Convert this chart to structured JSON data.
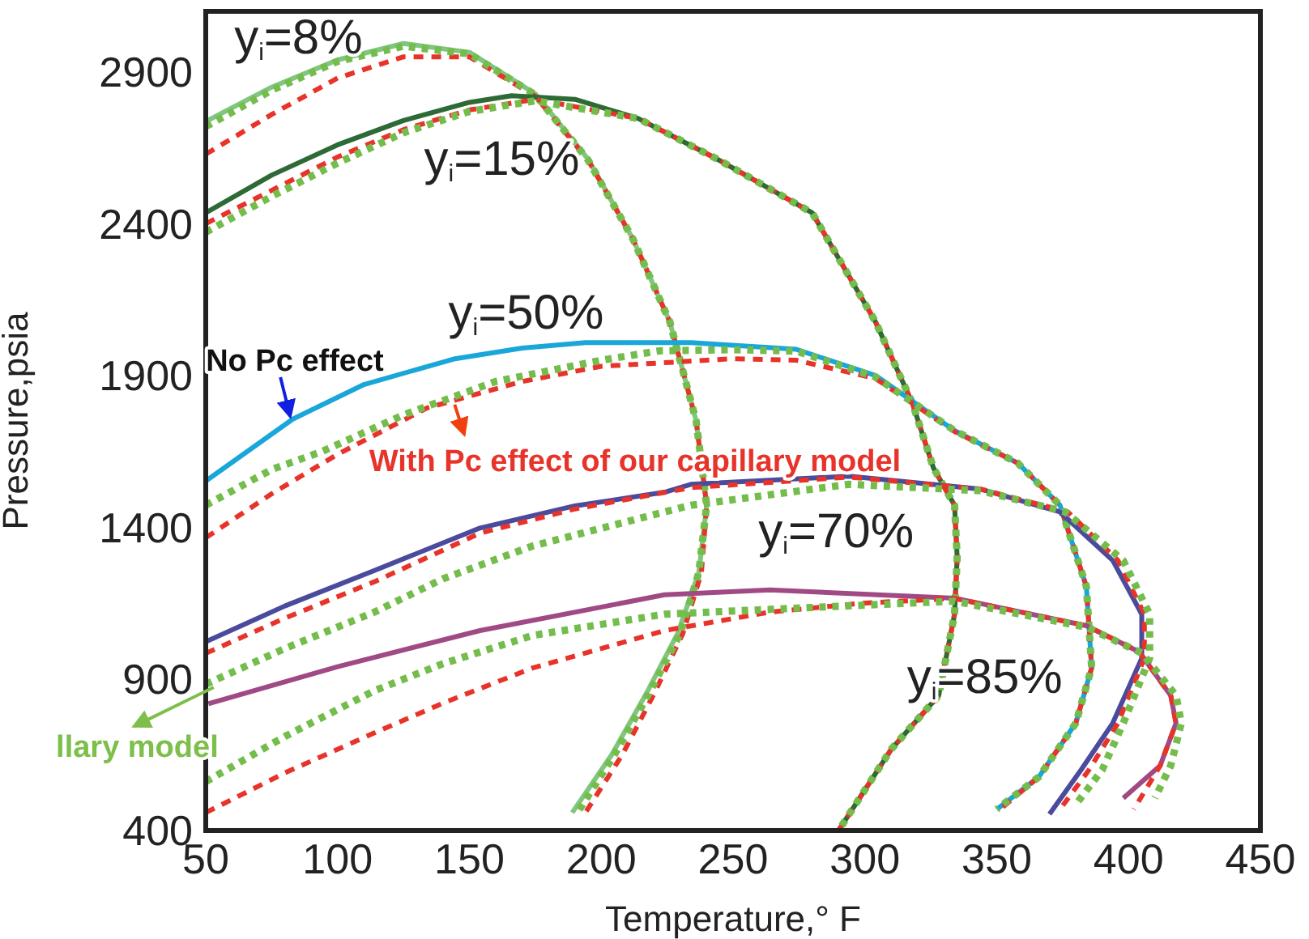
{
  "chart_data": {
    "type": "line",
    "xlabel": "Temperature,° F",
    "ylabel": "Pressure,psia",
    "xlim": [
      50,
      450
    ],
    "xticks": [
      50,
      100,
      150,
      200,
      250,
      300,
      350,
      400,
      450
    ],
    "ylim": [
      400,
      3100
    ],
    "yticks": [
      400,
      900,
      1400,
      1900,
      2400,
      2900
    ],
    "marker": "none",
    "series": [
      {
        "color": "#80c67f",
        "line_style": "solid",
        "x": [
          50,
          75,
          100,
          125,
          150,
          175,
          195,
          212,
          226,
          236,
          240,
          237,
          229,
          217,
          204,
          189
        ],
        "values": [
          2737,
          2850,
          2940,
          2994,
          2965,
          2828,
          2613,
          2350,
          2077,
          1750,
          1472,
          1250,
          1050,
          850,
          650,
          459
        ]
      },
      {
        "color": "#e8332a",
        "line_style": "dashed",
        "x": [
          50,
          75,
          100,
          125,
          150,
          175,
          195,
          212,
          226,
          236,
          240,
          238,
          231,
          220,
          208,
          194
        ],
        "values": [
          2629,
          2760,
          2880,
          2950,
          2950,
          2820,
          2610,
          2350,
          2077,
          1750,
          1472,
          1250,
          1050,
          850,
          650,
          459
        ]
      },
      {
        "color": "#74bd4c",
        "line_style": "dotted",
        "x": [
          50,
          75,
          100,
          125,
          150,
          175,
          195,
          212,
          226,
          236,
          240,
          237,
          230,
          218,
          205,
          191
        ],
        "values": [
          2720,
          2840,
          2935,
          2985,
          2960,
          2825,
          2610,
          2350,
          2077,
          1750,
          1472,
          1250,
          1050,
          850,
          650,
          459
        ]
      },
      {
        "color": "#2d6a36",
        "line_style": "solid",
        "x": [
          50,
          75,
          100,
          125,
          150,
          166,
          190,
          214,
          244,
          280,
          304,
          318,
          326,
          334,
          335,
          334,
          328,
          310,
          290
        ],
        "values": [
          2436,
          2560,
          2660,
          2740,
          2800,
          2822,
          2810,
          2747,
          2613,
          2436,
          2077,
          1809,
          1595,
          1472,
          1300,
          1113,
          845,
          668,
          400
        ]
      },
      {
        "color": "#e8332a",
        "line_style": "dashed",
        "x": [
          50,
          75,
          100,
          125,
          150,
          175,
          214,
          244,
          280,
          304,
          318,
          326,
          334,
          335,
          334,
          328,
          310,
          290
        ],
        "values": [
          2400,
          2510,
          2620,
          2710,
          2775,
          2810,
          2747,
          2613,
          2436,
          2077,
          1809,
          1595,
          1472,
          1300,
          1113,
          845,
          668,
          400
        ]
      },
      {
        "color": "#74bd4c",
        "line_style": "dotted",
        "x": [
          50,
          75,
          100,
          125,
          150,
          175,
          214,
          244,
          280,
          304,
          318,
          326,
          334,
          335,
          334,
          328,
          310,
          290
        ],
        "values": [
          2372,
          2490,
          2600,
          2700,
          2770,
          2805,
          2747,
          2613,
          2436,
          2077,
          1809,
          1595,
          1472,
          1300,
          1113,
          845,
          668,
          400
        ]
      },
      {
        "color": "#19a6d8",
        "line_style": "solid",
        "x": [
          50,
          83,
          110,
          144,
          170,
          194,
          234,
          274,
          304,
          334,
          358,
          374,
          384,
          386,
          380,
          366,
          350
        ],
        "values": [
          1552,
          1756,
          1870,
          1954,
          1990,
          2008,
          2008,
          1986,
          1900,
          1718,
          1611,
          1472,
          1204,
          936,
          754,
          577,
          470
        ]
      },
      {
        "color": "#e8332a",
        "line_style": "dashed",
        "x": [
          50,
          75,
          100,
          134,
          170,
          200,
          250,
          274,
          304,
          334,
          358,
          374,
          384,
          386,
          380,
          366,
          352
        ],
        "values": [
          1365,
          1510,
          1640,
          1793,
          1880,
          1930,
          1955,
          1950,
          1890,
          1715,
          1611,
          1472,
          1204,
          936,
          754,
          577,
          475
        ]
      },
      {
        "color": "#74bd4c",
        "line_style": "dotted",
        "x": [
          50,
          75,
          94,
          125,
          160,
          200,
          222,
          250,
          274,
          304,
          334,
          358,
          374,
          384,
          386,
          380,
          366,
          350
        ],
        "values": [
          1472,
          1590,
          1649,
          1770,
          1880,
          1950,
          1981,
          1985,
          1980,
          1895,
          1718,
          1611,
          1472,
          1204,
          936,
          754,
          577,
          470
        ]
      },
      {
        "color": "#4a4b9d",
        "line_style": "solid",
        "x": [
          50,
          80,
          114,
          154,
          190,
          224,
          234,
          294,
          344,
          374,
          394,
          405,
          405,
          394,
          382,
          370
        ],
        "values": [
          1022,
          1140,
          1257,
          1397,
          1470,
          1515,
          1541,
          1568,
          1525,
          1450,
          1290,
          1113,
          968,
          754,
          600,
          454
        ]
      },
      {
        "color": "#e8332a",
        "line_style": "dashed",
        "x": [
          50,
          80,
          114,
          154,
          190,
          234,
          294,
          344,
          377,
          396,
          406,
          406,
          396,
          385,
          374
        ],
        "values": [
          984,
          1100,
          1220,
          1380,
          1460,
          1530,
          1565,
          1525,
          1450,
          1290,
          1113,
          968,
          754,
          600,
          470
        ]
      },
      {
        "color": "#74bd4c",
        "line_style": "dotted",
        "x": [
          50,
          80,
          114,
          140,
          174,
          224,
          234,
          294,
          344,
          376,
          398,
          408,
          408,
          398,
          390,
          380
        ],
        "values": [
          882,
          1000,
          1120,
          1230,
          1338,
          1450,
          1472,
          1541,
          1520,
          1450,
          1290,
          1113,
          968,
          754,
          600,
          486
        ]
      },
      {
        "color": "#a04a85",
        "line_style": "solid",
        "x": [
          51,
          100,
          154,
          224,
          264,
          334,
          384,
          404,
          416,
          418,
          412,
          398
        ],
        "values": [
          818,
          940,
          1059,
          1177,
          1193,
          1166,
          1075,
          989,
          845,
          754,
          614,
          507
        ]
      },
      {
        "color": "#e8332a",
        "line_style": "dashed",
        "x": [
          50,
          80,
          114,
          140,
          174,
          224,
          264,
          300,
          334,
          384,
          404,
          416,
          418,
          412,
          402
        ],
        "values": [
          459,
          590,
          722,
          820,
          936,
          1059,
          1120,
          1150,
          1165,
          1075,
          989,
          845,
          754,
          614,
          470
        ]
      },
      {
        "color": "#74bd4c",
        "line_style": "dotted",
        "x": [
          50,
          80,
          114,
          140,
          174,
          224,
          264,
          334,
          384,
          405,
          418,
          420,
          416,
          410
        ],
        "values": [
          561,
          710,
          861,
          950,
          1043,
          1113,
          1129,
          1156,
          1070,
          985,
          845,
          754,
          614,
          507
        ]
      }
    ],
    "annotations": [
      "y$_{i}$=8%",
      "y$_{i}$=15%",
      "y$_{i}$=50%",
      "y$_{i}$=70%",
      "y$_{i}$=85%",
      {
        "text": "No Pc effect",
        "x": 82,
        "y": 1766
      },
      "With Pc effect of our capillary model",
      {
        "text": "llary model",
        "x": 53,
        "y": 872
      }
    ]
  }
}
